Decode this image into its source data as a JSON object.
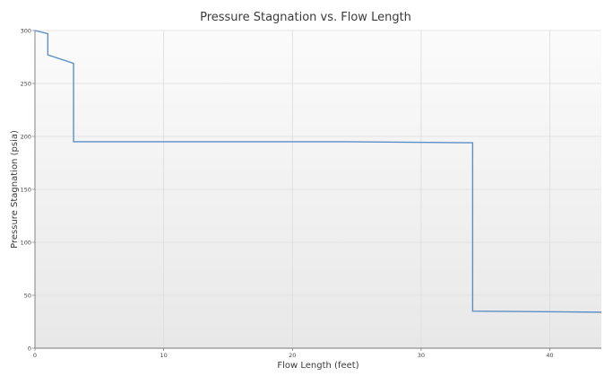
{
  "chart_data": {
    "type": "line",
    "title": "Pressure Stagnation vs. Flow Length",
    "xlabel": "Flow Length (feet)",
    "ylabel": "Pressure Stagnation (psia)",
    "xlim": [
      0,
      44
    ],
    "ylim": [
      0,
      300
    ],
    "x_ticks": [
      0,
      10,
      20,
      30,
      40
    ],
    "y_ticks": [
      0,
      50,
      100,
      150,
      200,
      250,
      300
    ],
    "grid": true,
    "colors": {
      "line": "#5b8fc7",
      "plot_bg_top": "#fbfbfb",
      "plot_bg_bottom": "#e8e8e8",
      "grid": "#dcdcdc"
    },
    "series": [
      {
        "x": [
          0,
          1,
          1,
          3,
          3,
          24,
          34,
          34,
          44
        ],
        "y": [
          300,
          297,
          277,
          269,
          195,
          195,
          194,
          35,
          34
        ]
      }
    ]
  }
}
